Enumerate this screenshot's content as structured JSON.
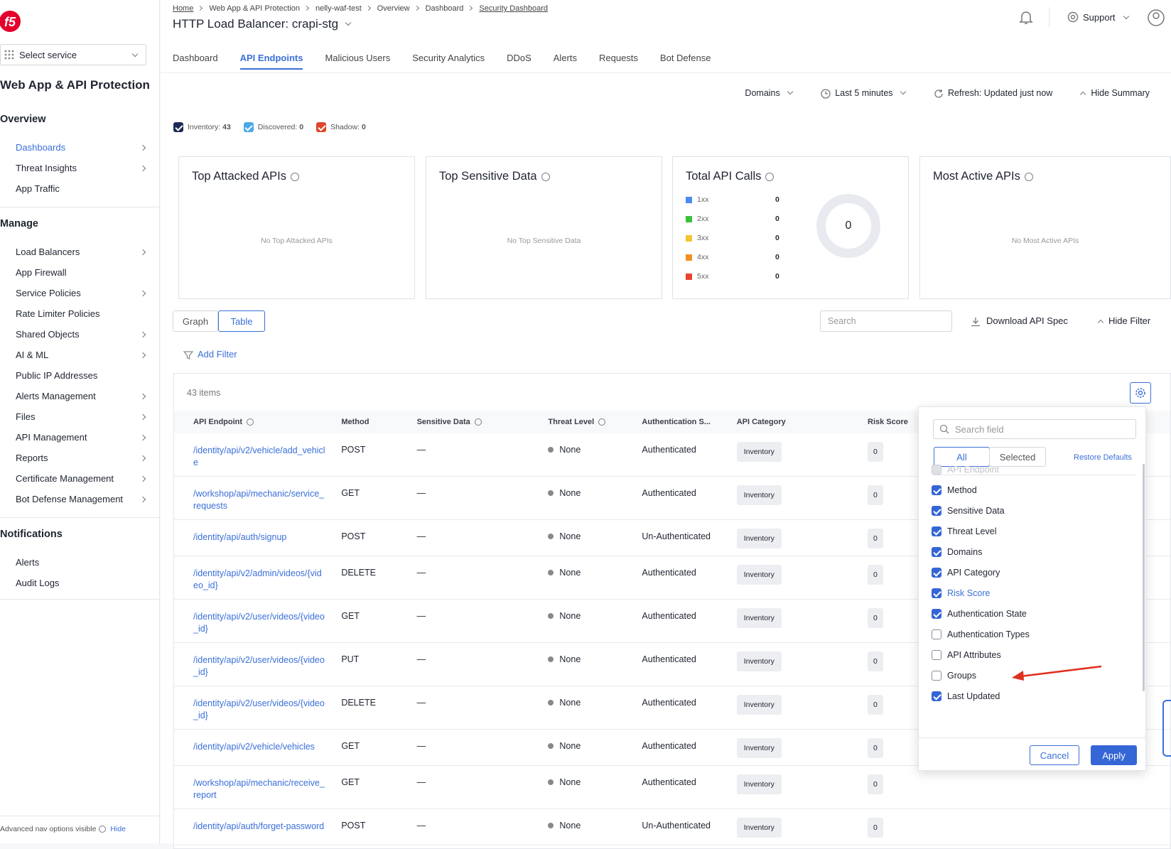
{
  "sidebar": {
    "service_select": "Select service",
    "title": "Web App & API Protection",
    "sections": [
      {
        "heading": "Overview",
        "items": [
          {
            "label": "Dashboards",
            "chevron": true,
            "active": true
          },
          {
            "label": "Threat Insights",
            "chevron": true,
            "active": false
          },
          {
            "label": "App Traffic",
            "chevron": false,
            "active": false
          }
        ]
      },
      {
        "heading": "Manage",
        "items": [
          {
            "label": "Load Balancers",
            "chevron": true,
            "active": false
          },
          {
            "label": "App Firewall",
            "chevron": false,
            "active": false
          },
          {
            "label": "Service Policies",
            "chevron": true,
            "active": false
          },
          {
            "label": "Rate Limiter Policies",
            "chevron": false,
            "active": false
          },
          {
            "label": "Shared Objects",
            "chevron": true,
            "active": false
          },
          {
            "label": "AI & ML",
            "chevron": true,
            "active": false
          },
          {
            "label": "Public IP Addresses",
            "chevron": false,
            "active": false
          },
          {
            "label": "Alerts Management",
            "chevron": true,
            "active": false
          },
          {
            "label": "Files",
            "chevron": true,
            "active": false
          },
          {
            "label": "API Management",
            "chevron": true,
            "active": false
          },
          {
            "label": "Reports",
            "chevron": true,
            "active": false
          },
          {
            "label": "Certificate Management",
            "chevron": true,
            "active": false
          },
          {
            "label": "Bot Defense Management",
            "chevron": true,
            "active": false
          }
        ]
      },
      {
        "heading": "Notifications",
        "items": [
          {
            "label": "Alerts",
            "chevron": false,
            "active": false
          },
          {
            "label": "Audit Logs",
            "chevron": false,
            "active": false
          }
        ]
      }
    ],
    "footer": {
      "text": "Advanced nav options visible",
      "link": "Hide"
    }
  },
  "header": {
    "breadcrumbs": [
      "Home",
      "Web App & API Protection",
      "nelly-waf-test",
      "Overview",
      "Dashboard",
      "Security Dashboard"
    ],
    "title": "HTTP Load Balancer: crapi-stg",
    "support": "Support"
  },
  "tabs": {
    "items": [
      "Dashboard",
      "API Endpoints",
      "Malicious Users",
      "Security Analytics",
      "DDoS",
      "Alerts",
      "Requests",
      "Bot Defense"
    ],
    "active": 1
  },
  "toolbar": {
    "domains": "Domains",
    "time": "Last 5 minutes",
    "refresh": "Refresh: Updated just now",
    "hide_summary": "Hide Summary"
  },
  "legend_checks": [
    {
      "label": "Inventory:",
      "count": 43,
      "color": "#1c2a55"
    },
    {
      "label": "Discovered:",
      "count": 0,
      "color": "#4aa8e8"
    },
    {
      "label": "Shadow:",
      "count": 0,
      "color": "#e0452b"
    }
  ],
  "cards": [
    {
      "title": "Top Attacked APIs",
      "empty": "No Top Attacked APIs"
    },
    {
      "title": "Top Sensitive Data",
      "empty": "No Top Sensitive Data"
    },
    {
      "title": "Total API Calls",
      "rows": [
        {
          "label": "1xx",
          "value": 0,
          "color": "#4b8af0"
        },
        {
          "label": "2xx",
          "value": 0,
          "color": "#3cc13b"
        },
        {
          "label": "3xx",
          "value": 0,
          "color": "#f5c431"
        },
        {
          "label": "4xx",
          "value": 0,
          "color": "#f39021"
        },
        {
          "label": "5xx",
          "value": 0,
          "color": "#e8452c"
        }
      ],
      "total": 0
    },
    {
      "title": "Most Active APIs",
      "empty": "No Most Active APIs"
    }
  ],
  "view_toggle": {
    "items": [
      "Graph",
      "Table"
    ],
    "active": 1
  },
  "search_placeholder": "Search",
  "download": "Download API Spec",
  "hide_filter": "Hide Filter",
  "add_filter": "Add Filter",
  "table": {
    "count_label": "43 items",
    "columns": [
      "API Endpoint",
      "Method",
      "Sensitive Data",
      "Threat Level",
      "Authentication S...",
      "API Category",
      "Risk Score"
    ],
    "rows": [
      [
        "/identity/api/v2/vehicle/add_vehicle",
        "POST",
        "—",
        "None",
        "Authenticated",
        "Inventory",
        0
      ],
      [
        "/workshop/api/mechanic/service_requests",
        "GET",
        "—",
        "None",
        "Authenticated",
        "Inventory",
        0
      ],
      [
        "/identity/api/auth/signup",
        "POST",
        "—",
        "None",
        "Un-Authenticated",
        "Inventory",
        0
      ],
      [
        "/identity/api/v2/admin/videos/{video_id}",
        "DELETE",
        "—",
        "None",
        "Authenticated",
        "Inventory",
        0
      ],
      [
        "/identity/api/v2/user/videos/{video_id}",
        "GET",
        "—",
        "None",
        "Authenticated",
        "Inventory",
        0
      ],
      [
        "/identity/api/v2/user/videos/{video_id}",
        "PUT",
        "—",
        "None",
        "Authenticated",
        "Inventory",
        0
      ],
      [
        "/identity/api/v2/user/videos/{video_id}",
        "DELETE",
        "—",
        "None",
        "Authenticated",
        "Inventory",
        0
      ],
      [
        "/identity/api/v2/vehicle/vehicles",
        "GET",
        "—",
        "None",
        "Authenticated",
        "Inventory",
        0
      ],
      [
        "/workshop/api/mechanic/receive_report",
        "GET",
        "—",
        "None",
        "Authenticated",
        "Inventory",
        0
      ],
      [
        "/identity/api/auth/forget-password",
        "POST",
        "—",
        "None",
        "Un-Authenticated",
        "Inventory",
        0
      ]
    ]
  },
  "column_panel": {
    "search_placeholder": "Search field",
    "tabs": [
      "All",
      "Selected"
    ],
    "restore": "Restore Defaults",
    "fields": [
      {
        "label": "API Endpoint",
        "checked": true,
        "disabled": true,
        "highlight": false
      },
      {
        "label": "Method",
        "checked": true,
        "disabled": false,
        "highlight": false
      },
      {
        "label": "Sensitive Data",
        "checked": true,
        "disabled": false,
        "highlight": false
      },
      {
        "label": "Threat Level",
        "checked": true,
        "disabled": false,
        "highlight": false
      },
      {
        "label": "Domains",
        "checked": true,
        "disabled": false,
        "highlight": false
      },
      {
        "label": "API Category",
        "checked": true,
        "disabled": false,
        "highlight": false
      },
      {
        "label": "Risk Score",
        "checked": true,
        "disabled": false,
        "highlight": true
      },
      {
        "label": "Authentication State",
        "checked": true,
        "disabled": false,
        "highlight": false
      },
      {
        "label": "Authentication Types",
        "checked": false,
        "disabled": false,
        "highlight": false
      },
      {
        "label": "API Attributes",
        "checked": false,
        "disabled": false,
        "highlight": false
      },
      {
        "label": "Groups",
        "checked": false,
        "disabled": false,
        "highlight": false
      },
      {
        "label": "Last Updated",
        "checked": true,
        "disabled": false,
        "highlight": false
      }
    ],
    "cancel": "Cancel",
    "apply": "Apply"
  }
}
